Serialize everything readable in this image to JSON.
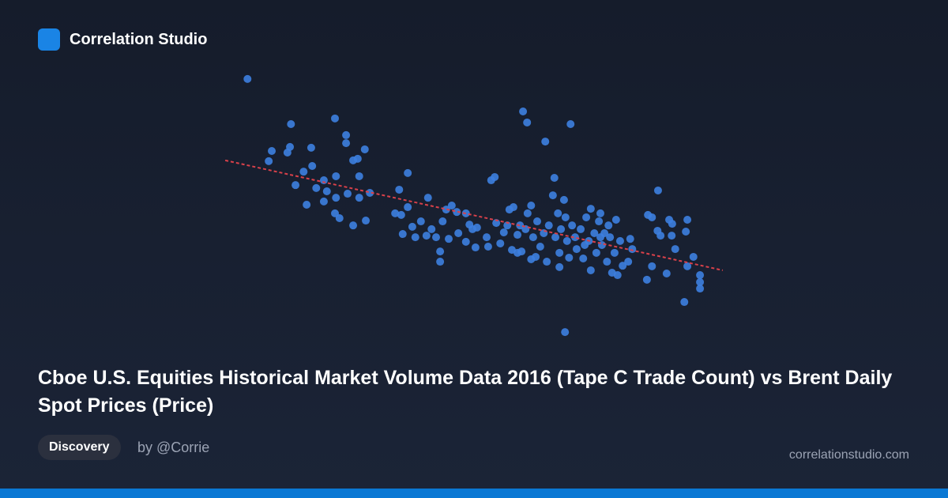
{
  "header": {
    "brand": "Correlation Studio"
  },
  "chart_data": {
    "type": "scatter",
    "title": "Cboe U.S. Equities Historical Market Volume Data 2016 (Tape C Trade Count) vs Brent Daily Spot Prices (Price)",
    "color": "#3d7fe0",
    "xlim": [
      0,
      100
    ],
    "ylim": [
      0,
      100
    ],
    "x": [
      5.2,
      13.8,
      22.5,
      24.7,
      24.7,
      28.4,
      10.0,
      13.6,
      17.8,
      9.4,
      13.1,
      16.3,
      18.0,
      14.7,
      20.3,
      22.7,
      26.1,
      27.0,
      27.3,
      18.8,
      20.9,
      22.7,
      25.0,
      27.3,
      29.4,
      16.9,
      20.3,
      22.5,
      23.4,
      26.1,
      28.6,
      36.9,
      35.2,
      36.9,
      34.4,
      35.6,
      37.8,
      35.9,
      38.4,
      39.5,
      40.9,
      41.6,
      40.6,
      42.5,
      43.3,
      43.3,
      43.8,
      44.5,
      45.6,
      46.6,
      45.0,
      46.9,
      48.4,
      49.1,
      49.7,
      50.6,
      48.4,
      50.3,
      52.5,
      52.8,
      53.4,
      54.1,
      54.4,
      55.2,
      55.9,
      56.6,
      57.0,
      57.8,
      57.5,
      58.6,
      59.1,
      59.7,
      60.5,
      59.4,
      60.2,
      60.6,
      61.3,
      61.7,
      62.2,
      62.5,
      63.1,
      63.8,
      64.1,
      64.4,
      64.8,
      65.6,
      65.9,
      66.1,
      66.6,
      66.9,
      66.9,
      67.2,
      67.8,
      68.0,
      68.1,
      68.4,
      68.8,
      69.1,
      69.4,
      70.0,
      70.3,
      71.1,
      71.6,
      72.2,
      72.7,
      73.1,
      73.1,
      73.8,
      74.2,
      74.7,
      75.0,
      75.3,
      75.8,
      76.3,
      76.6,
      76.9,
      77.3,
      77.8,
      78.1,
      78.4,
      78.9,
      79.4,
      80.5,
      80.9,
      81.3,
      84.4,
      85.2,
      86.4,
      86.3,
      86.9,
      84.2,
      85.2,
      88.1,
      88.6,
      89.2,
      89.1,
      89.8,
      91.6,
      91.9,
      92.2,
      92.2,
      93.4,
      94.7,
      94.7,
      94.7,
      58.6,
      61.3,
      71.9,
      75.0
    ],
    "y": [
      97.1,
      80.3,
      82.4,
      76.2,
      73.2,
      70.9,
      70.3,
      71.8,
      71.5,
      66.5,
      69.7,
      62.6,
      64.7,
      57.6,
      59.4,
      60.9,
      66.8,
      67.4,
      60.9,
      56.5,
      55.3,
      52.9,
      54.4,
      52.9,
      54.7,
      50.3,
      51.5,
      47.1,
      45.3,
      42.6,
      44.4,
      62.1,
      55.9,
      49.4,
      47.1,
      46.5,
      42.1,
      39.4,
      38.2,
      44.1,
      52.9,
      41.2,
      38.8,
      38.2,
      32.9,
      29.1,
      44.1,
      48.5,
      50.0,
      47.6,
      37.6,
      39.7,
      47.1,
      42.9,
      41.2,
      41.8,
      36.5,
      34.4,
      38.2,
      34.7,
      59.4,
      60.6,
      43.5,
      35.9,
      40.0,
      42.6,
      48.5,
      49.4,
      33.5,
      39.1,
      42.6,
      85.0,
      80.9,
      32.9,
      41.2,
      47.1,
      50.0,
      38.2,
      30.9,
      44.1,
      34.7,
      39.7,
      73.8,
      29.1,
      42.6,
      53.8,
      60.3,
      38.2,
      47.1,
      32.4,
      27.1,
      41.2,
      52.1,
      2.9,
      45.6,
      36.8,
      30.6,
      80.3,
      42.6,
      38.2,
      33.8,
      41.2,
      30.3,
      45.6,
      36.8,
      48.8,
      25.9,
      39.7,
      32.4,
      44.1,
      47.1,
      35.3,
      39.7,
      29.1,
      42.6,
      38.2,
      25.0,
      32.4,
      44.7,
      24.1,
      36.8,
      27.6,
      29.1,
      37.6,
      33.8,
      46.5,
      45.6,
      55.6,
      40.6,
      38.8,
      22.4,
      27.4,
      24.7,
      44.7,
      43.2,
      38.8,
      33.8,
      14.1,
      40.3,
      44.7,
      27.4,
      30.9,
      24.1,
      21.5,
      19.1,
      32.4,
      30.0,
      35.3,
      38.2
    ],
    "trendline": {
      "x": [
        0.8,
        99.2
      ],
      "y": [
        66.8,
        25.9
      ],
      "color": "#d9414a"
    }
  },
  "footer": {
    "tag": "Discovery",
    "author": "by @Corrie",
    "site": "correlationstudio.com"
  }
}
